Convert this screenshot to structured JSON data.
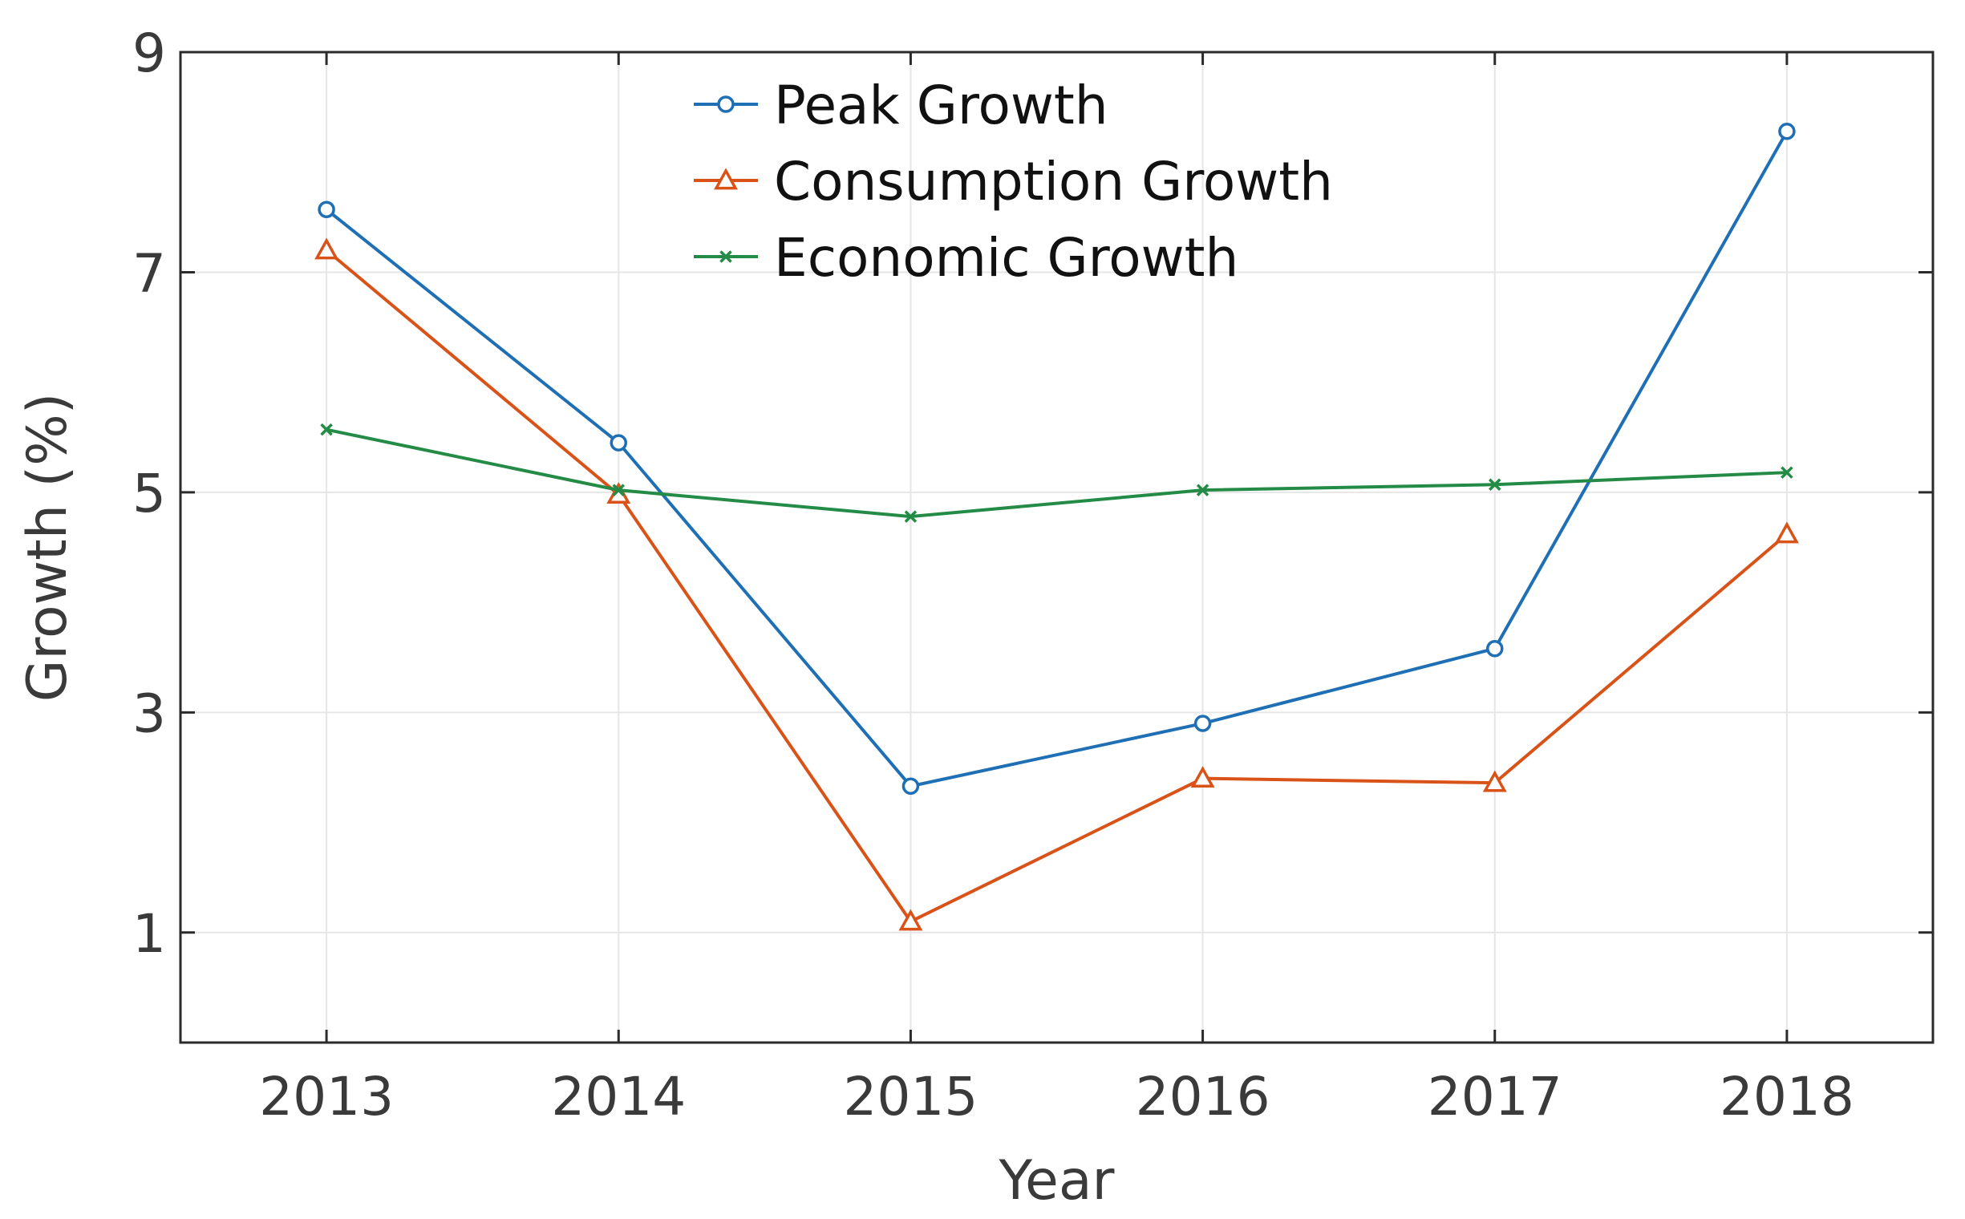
{
  "chart_data": {
    "type": "line",
    "title": "",
    "xlabel": "Year",
    "ylabel": "Growth (%)",
    "categories": [
      "2013",
      "2014",
      "2015",
      "2016",
      "2017",
      "2018"
    ],
    "yticks": [
      "1",
      "3",
      "5",
      "7",
      "9"
    ],
    "ylim": [
      0,
      9
    ],
    "grid": true,
    "legend_position": "top-center",
    "series": [
      {
        "name": "Peak Growth",
        "marker": "circle",
        "color": "#1f6fb5",
        "values": [
          7.57,
          5.45,
          2.33,
          2.9,
          3.58,
          8.28
        ]
      },
      {
        "name": "Consumption Growth",
        "marker": "triangle",
        "color": "#d95319",
        "values": [
          7.2,
          4.98,
          1.1,
          2.4,
          2.36,
          4.62
        ]
      },
      {
        "name": "Economic Growth",
        "marker": "x",
        "color": "#238b45",
        "values": [
          5.57,
          5.02,
          4.78,
          5.02,
          5.07,
          5.18
        ]
      }
    ]
  }
}
